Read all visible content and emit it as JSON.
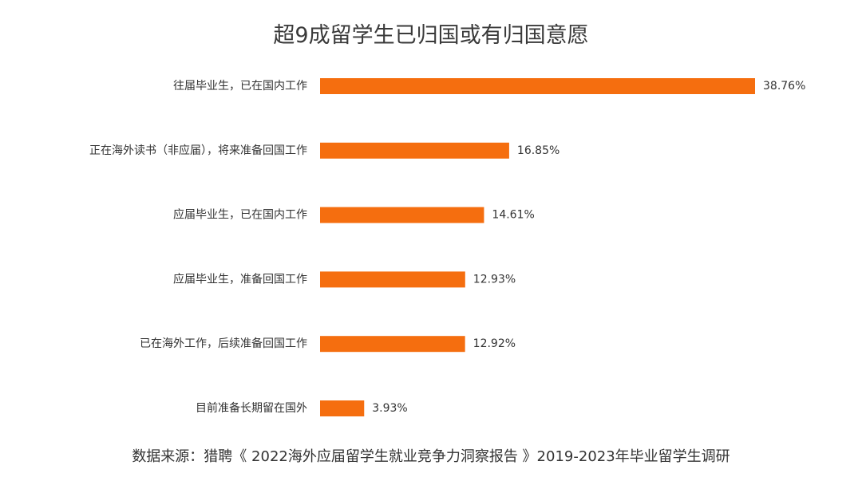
{
  "chart_data": {
    "type": "bar",
    "orientation": "horizontal",
    "title": "超9成留学生已归国或有归国意愿",
    "categories": [
      "往届毕业生，已在国内工作",
      "正在海外读书（非应届），将来准备回国工作",
      "应届毕业生，已在国内工作",
      "应届毕业生，准备回国工作",
      "已在海外工作，后续准备回国工作",
      "目前准备长期留在国外"
    ],
    "values": [
      38.76,
      16.85,
      14.61,
      12.93,
      12.92,
      3.93
    ],
    "value_labels": [
      "38.76%",
      "16.85%",
      "14.61%",
      "12.93%",
      "12.92%",
      "3.93%"
    ],
    "unit": "%",
    "xlim": [
      0,
      38.76
    ],
    "grid": false,
    "legend": "none",
    "bar_color": "#f56e0f"
  },
  "source": "数据来源：猎聘《 2022海外应届留学生就业竞争力洞察报告 》2019-2023年毕业留学生调研"
}
